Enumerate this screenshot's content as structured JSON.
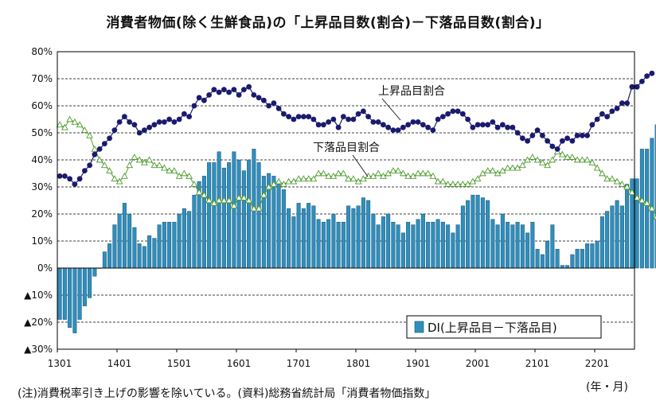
{
  "title": "消費者物価(除く生鮮食品)の「上昇品目数(割合)－下落品目数(割合)」",
  "footnote": "(注)消費税率引き上げの影響を除いている。(資料)総務省統計局「消費者物価指数」",
  "unit_label": "(年・月)",
  "colors": {
    "bar_fill": "#2e8fbd",
    "bar_stroke": "#1a4f70",
    "rise_line": "#1a1a6e",
    "fall_line": "#4e9c2e",
    "fall_marker_fill": "#ffffff",
    "grid": "#000000"
  },
  "chart_data": {
    "type": "bar",
    "title": "消費者物価(除く生鮮食品)の「上昇品目数(割合)－下落品目数(割合)」",
    "xlabel": "(年・月)",
    "ylabel": "",
    "ylim": [
      -30,
      80
    ],
    "yticks": [
      -30,
      -20,
      -10,
      0,
      10,
      20,
      30,
      40,
      50,
      60,
      70,
      80
    ],
    "ytick_labels": [
      "▲30%",
      "▲20%",
      "▲10%",
      "0%",
      "10%",
      "20%",
      "30%",
      "40%",
      "50%",
      "60%",
      "70%",
      "80%"
    ],
    "x_tick_labels": [
      "1301",
      "1401",
      "1501",
      "1601",
      "1701",
      "1801",
      "1901",
      "2001",
      "2101",
      "2201"
    ],
    "periods": 116,
    "grid": "horizontal dashed",
    "legend_position": "bottom-right",
    "annotations": [
      {
        "text": "上昇品目割合",
        "series": "上昇品目割合"
      },
      {
        "text": "下落品目割合",
        "series": "下落品目割合"
      }
    ],
    "series": [
      {
        "name": "DI(上昇品目－下落品目)",
        "type": "bar",
        "values": [
          -19,
          -19,
          -22,
          -24,
          -19,
          -14,
          -11,
          -3,
          0,
          6,
          9,
          16,
          20,
          24,
          20,
          15,
          9,
          8,
          12,
          11,
          16,
          17,
          17,
          17,
          20,
          22,
          21,
          27,
          32,
          34,
          39,
          39,
          43,
          37,
          39,
          43,
          40,
          36,
          40,
          44,
          39,
          34,
          35,
          34,
          31,
          29,
          22,
          19,
          24,
          22,
          24,
          23,
          18,
          17,
          18,
          20,
          17,
          17,
          23,
          22,
          23,
          26,
          25,
          20,
          16,
          19,
          20,
          17,
          16,
          13,
          17,
          16,
          18,
          20,
          17,
          17,
          18,
          17,
          16,
          13,
          16,
          23,
          25,
          27,
          27,
          26,
          25,
          18,
          16,
          20,
          17,
          16,
          17,
          16,
          13,
          17,
          7,
          5,
          10,
          16,
          7,
          1,
          1,
          5,
          7,
          7,
          9,
          9,
          10,
          19,
          21,
          23,
          25,
          23,
          31,
          33,
          33,
          44,
          44,
          48,
          53
        ]
      },
      {
        "name": "上昇品目割合",
        "type": "line",
        "marker": "circle",
        "values": [
          34,
          34,
          33,
          31,
          33,
          36,
          38,
          42,
          44,
          46,
          48,
          51,
          54,
          56,
          54,
          53,
          50,
          51,
          52,
          53,
          54,
          54,
          55,
          54,
          55,
          57,
          56,
          60,
          63,
          62,
          64,
          66,
          65,
          66,
          65,
          66,
          64,
          66,
          67,
          64,
          63,
          62,
          60,
          61,
          59,
          57,
          56,
          55,
          56,
          56,
          56,
          55,
          53,
          53,
          54,
          55,
          52,
          56,
          55,
          55,
          57,
          58,
          56,
          54,
          54,
          53,
          52,
          51,
          51,
          52,
          53,
          54,
          54,
          53,
          52,
          51,
          55,
          56,
          57,
          58,
          58,
          57,
          55,
          52,
          53,
          53,
          53,
          54,
          52,
          53,
          52,
          52,
          50,
          48,
          47,
          49,
          51,
          49,
          47,
          45,
          44,
          47,
          48,
          47,
          49,
          49,
          49,
          53,
          55,
          57,
          56,
          58,
          59,
          61,
          61,
          67,
          67,
          69,
          71,
          72
        ]
      },
      {
        "name": "下落品目割合",
        "type": "line",
        "marker": "triangle",
        "values": [
          53,
          52,
          55,
          54,
          53,
          51,
          49,
          44,
          40,
          38,
          36,
          33,
          32,
          34,
          38,
          41,
          40,
          39,
          40,
          38,
          38,
          37,
          36,
          36,
          34,
          35,
          34,
          31,
          28,
          27,
          25,
          24,
          25,
          25,
          25,
          23,
          26,
          26,
          25,
          22,
          22,
          27,
          30,
          31,
          32,
          31,
          32,
          32,
          33,
          33,
          33,
          33,
          35,
          35,
          34,
          34,
          35,
          35,
          33,
          33,
          32,
          33,
          34,
          34,
          35,
          34,
          35,
          36,
          36,
          35,
          34,
          34,
          35,
          35,
          35,
          34,
          32,
          32,
          31,
          31,
          31,
          31,
          31,
          32,
          33,
          35,
          36,
          36,
          35,
          36,
          37,
          37,
          37,
          38,
          40,
          41,
          40,
          39,
          38,
          40,
          43,
          42,
          41,
          41,
          40,
          40,
          40,
          39,
          37,
          35,
          33,
          33,
          32,
          31,
          30,
          28,
          26,
          25,
          24,
          22,
          19
        ]
      }
    ]
  },
  "legend": {
    "label": "DI(上昇品目－下落品目)"
  }
}
